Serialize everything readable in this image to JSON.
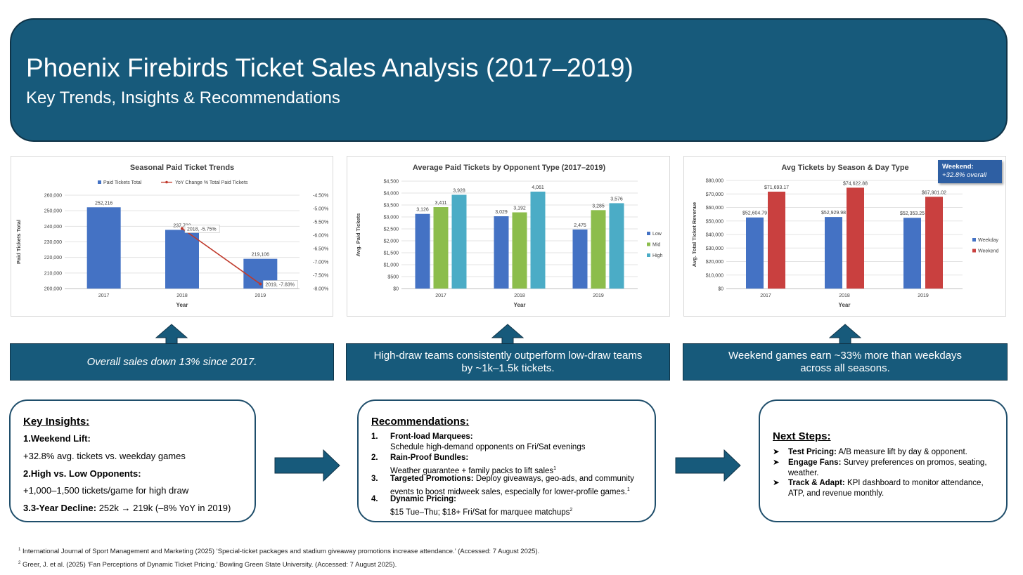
{
  "header": {
    "title": "Phoenix Firebirds Ticket Sales Analysis (2017–2019)",
    "subtitle": "Key Trends, Insights & Recommendations"
  },
  "chart_data": [
    {
      "type": "bar",
      "title": "Seasonal Paid Ticket Trends",
      "xlabel": "Year",
      "ylabel": "Paid Tickets Total",
      "categories": [
        "2017",
        "2018",
        "2019"
      ],
      "ylim": [
        200000,
        260000
      ],
      "y_ticks": [
        "200,000",
        "210,000",
        "220,000",
        "230,000",
        "240,000",
        "250,000",
        "260,000"
      ],
      "y2lim": [
        -8.0,
        -4.5
      ],
      "y2_ticks": [
        "-4.50%",
        "-5.00%",
        "-5.50%",
        "-6.00%",
        "-6.50%",
        "-7.00%",
        "-7.50%",
        "-8.00%"
      ],
      "legend": "top",
      "series": [
        {
          "name": "Paid Tickets Total",
          "type": "bar",
          "color": "#4472c4",
          "values": [
            252216,
            237723,
            219106
          ],
          "labels": [
            "252,216",
            "237,723",
            "219,106"
          ]
        },
        {
          "name": "YoY Change % Total Paid Tickets",
          "type": "line",
          "axis": "secondary",
          "color": "#c0392b",
          "x": [
            "2018",
            "2019"
          ],
          "values": [
            -5.75,
            -7.83
          ],
          "labels": [
            "2018, -5.75%",
            "2019, -7.83%"
          ]
        }
      ]
    },
    {
      "type": "bar",
      "title": "Average Paid Tickets by Opponent Type (2017–2019)",
      "xlabel": "Year",
      "ylabel": "Avg. Paid Tickets",
      "categories": [
        "2017",
        "2018",
        "2019"
      ],
      "ylim": [
        0,
        4500
      ],
      "y_ticks": [
        "$0",
        "$500",
        "$1,000",
        "$1,500",
        "$2,000",
        "$2,500",
        "$3,000",
        "$3,500",
        "$4,000",
        "$4,500"
      ],
      "legend": "right",
      "series": [
        {
          "name": "Low",
          "color": "#4472c4",
          "values": [
            3126,
            3029,
            2475
          ],
          "labels": [
            "3,126",
            "3,029",
            "2,475"
          ]
        },
        {
          "name": "Mid",
          "color": "#8cbd4c",
          "values": [
            3411,
            3192,
            3285
          ],
          "labels": [
            "3,411",
            "3,192",
            "3,285"
          ]
        },
        {
          "name": "High",
          "color": "#4bacc6",
          "values": [
            3928,
            4061,
            3576
          ],
          "labels": [
            "3,928",
            "4,061",
            "3,576"
          ]
        }
      ]
    },
    {
      "type": "bar",
      "title": "Avg Tickets by Season & Day Type",
      "xlabel": "Year",
      "ylabel": "Avg. Total Ticket Revenue",
      "categories": [
        "2017",
        "2018",
        "2019"
      ],
      "ylim": [
        0,
        80000
      ],
      "y_ticks": [
        "$0",
        "$10,000",
        "$20,000",
        "$30,000",
        "$40,000",
        "$50,000",
        "$60,000",
        "$70,000",
        "$80,000"
      ],
      "legend": "right",
      "series": [
        {
          "name": "Weekday",
          "color": "#4472c4",
          "values": [
            52604.79,
            52929.98,
            52353.25
          ],
          "labels": [
            "$52,604.79",
            "$52,929.98",
            "$52,353.25"
          ]
        },
        {
          "name": "Weekend",
          "color": "#c9403f",
          "values": [
            71693.17,
            74622.88,
            67901.02
          ],
          "labels": [
            "$71,693.17",
            "$74,622.88",
            "$67,901.02"
          ]
        }
      ],
      "callout": {
        "title": "Weekend:",
        "text": "+32.8% overall"
      }
    }
  ],
  "banners": [
    {
      "text": "Overall sales down 13% since 2017."
    },
    {
      "line1": "High-draw teams consistently outperform low-draw teams",
      "line2": "by ~1k–1.5k tickets."
    },
    {
      "line1": "Weekend games earn ~33% more than weekdays",
      "line2": "across all seasons."
    }
  ],
  "insights": {
    "title": "Key Insights:",
    "weekend_head": "1.Weekend Lift:",
    "weekend_text": "+32.8% avg. tickets vs. weekday games",
    "opponents_head": "2.High vs. Low Opponents:",
    "opponents_text": "+1,000–1,500 tickets/game for high draw",
    "decline_head": "3.3-Year Decline:",
    "decline_text": "252k → 219k (–8% YoY in 2019)"
  },
  "recommendations": {
    "title": "Recommendations:",
    "items": [
      {
        "num": "1.",
        "head": "Front-load Marquees:",
        "text": "Schedule high-demand opponents on Fri/Sat evenings",
        "sup": ""
      },
      {
        "num": "2.",
        "head": "Rain-Proof Bundles:",
        "text": "Weather guarantee + family packs to lift sales",
        "sup": "1"
      },
      {
        "num": "3.",
        "head": "Targeted Promotions:",
        "text": "Deploy giveaways, geo-ads, and community events to boost midweek sales, especially for lower-profile games.",
        "sup": "1"
      },
      {
        "num": "4.",
        "head": "Dynamic Pricing:",
        "text": "$15 Tue–Thu; $18+ Fri/Sat for marquee matchups",
        "sup": "2"
      }
    ]
  },
  "next_steps": {
    "title": "Next Steps:",
    "items": [
      {
        "bullet": "➤",
        "head": "Test Pricing:",
        "text": "A/B measure lift by day & opponent."
      },
      {
        "bullet": "➤",
        "head": "Engage Fans:",
        "text": "Survey preferences on promos, seating, weather."
      },
      {
        "bullet": "➤",
        "head": "Track & Adapt:",
        "text": "KPI dashboard to monitor attendance, ATP, and revenue monthly."
      }
    ]
  },
  "footnotes": [
    {
      "sup": "1",
      "text": "International Journal of Sport Management and Marketing (2025) ‘Special-ticket packages and stadium giveaway promotions increase attendance.’ (Accessed: 7 August 2025)."
    },
    {
      "sup": "2",
      "text": "Greer, J. et al. (2025) ‘Fan Perceptions of Dynamic Ticket Pricing.’ Bowling Green State University. (Accessed: 7 August 2025)."
    }
  ]
}
